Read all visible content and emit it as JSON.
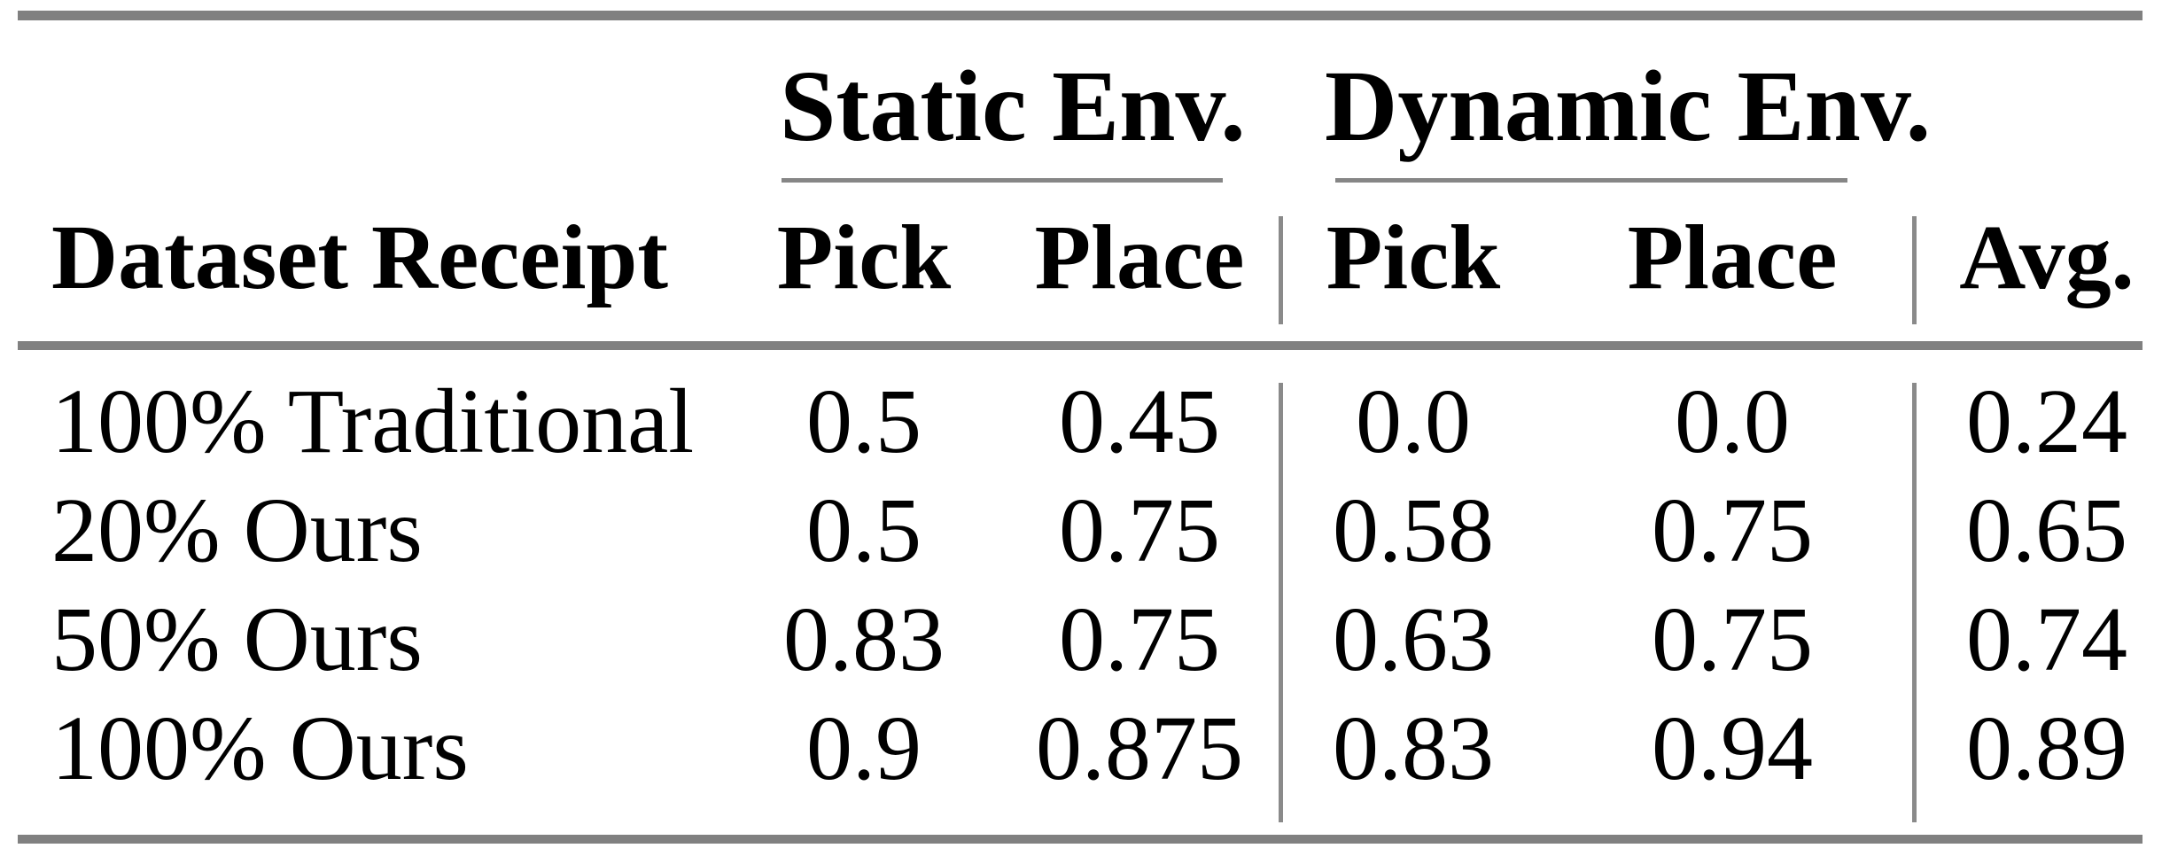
{
  "page": {
    "background": "#ffffff",
    "text_color": "#000000",
    "rule_color": "#808080"
  },
  "table": {
    "group_headers": [
      {
        "label": "Static Env."
      },
      {
        "label": "Dynamic Env."
      }
    ],
    "columns": {
      "dataset": "Dataset Receipt",
      "static_pick": "Pick",
      "static_place": "Place",
      "dynamic_pick": "Pick",
      "dynamic_place": "Place",
      "avg": "Avg."
    },
    "rows": [
      {
        "dataset": "100% Traditional",
        "values": [
          "0.5",
          "0.45",
          "0.0",
          "0.0",
          "0.24"
        ]
      },
      {
        "dataset": "20% Ours",
        "values": [
          "0.5",
          "0.75",
          "0.58",
          "0.75",
          "0.65"
        ]
      },
      {
        "dataset": "50% Ours",
        "values": [
          "0.83",
          "0.75",
          "0.63",
          "0.75",
          "0.74"
        ]
      },
      {
        "dataset": "100% Ours",
        "values": [
          "0.9",
          "0.875",
          "0.83",
          "0.94",
          "0.89"
        ]
      }
    ]
  },
  "chart_data": {
    "type": "table",
    "column_groups": [
      {
        "label": "Static Env.",
        "columns": [
          "Pick",
          "Place"
        ]
      },
      {
        "label": "Dynamic Env.",
        "columns": [
          "Pick",
          "Place"
        ]
      }
    ],
    "columns": [
      "Dataset Receipt",
      "Static Pick",
      "Static Place",
      "Dynamic Pick",
      "Dynamic Place",
      "Avg."
    ],
    "rows": [
      [
        "100% Traditional",
        0.5,
        0.45,
        0.0,
        0.0,
        0.24
      ],
      [
        "20% Ours",
        0.5,
        0.75,
        0.58,
        0.75,
        0.65
      ],
      [
        "50% Ours",
        0.83,
        0.75,
        0.63,
        0.75,
        0.74
      ],
      [
        "100% Ours",
        0.9,
        0.875,
        0.83,
        0.94,
        0.89
      ]
    ]
  }
}
